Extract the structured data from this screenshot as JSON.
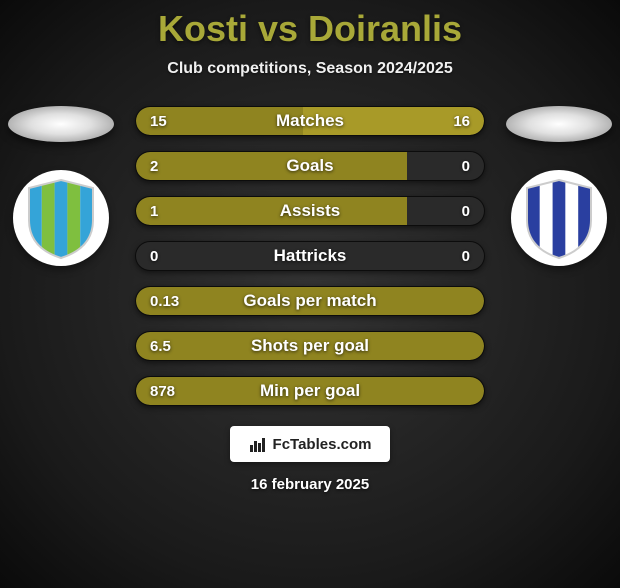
{
  "title": "Kosti vs Doiranlis",
  "subtitle": "Club competitions, Season 2024/2025",
  "player_left": {
    "name": "Kosti",
    "club_badge_bg": "#ffffff",
    "club_badge_stripes": [
      "#34a4d8",
      "#7fbf3f",
      "#34a4d8",
      "#7fbf3f",
      "#34a4d8"
    ]
  },
  "player_right": {
    "name": "Doiranlis",
    "club_badge_bg": "#ffffff",
    "club_badge_stripes": [
      "#2a3fa0",
      "#ffffff",
      "#2a3fa0",
      "#ffffff",
      "#2a3fa0"
    ]
  },
  "colors": {
    "bar_left": "#8f8420",
    "bar_right": "#a89a28",
    "bar_border": "#000000",
    "title": "#a8a838"
  },
  "stats": [
    {
      "label": "Matches",
      "left_val": "15",
      "right_val": "16",
      "left_pct": 48,
      "right_pct": 52
    },
    {
      "label": "Goals",
      "left_val": "2",
      "right_val": "0",
      "left_pct": 78,
      "right_pct": 0
    },
    {
      "label": "Assists",
      "left_val": "1",
      "right_val": "0",
      "left_pct": 78,
      "right_pct": 0
    },
    {
      "label": "Hattricks",
      "left_val": "0",
      "right_val": "0",
      "left_pct": 0,
      "right_pct": 0
    },
    {
      "label": "Goals per match",
      "left_val": "0.13",
      "right_val": "",
      "left_pct": 100,
      "right_pct": 0
    },
    {
      "label": "Shots per goal",
      "left_val": "6.5",
      "right_val": "",
      "left_pct": 100,
      "right_pct": 0
    },
    {
      "label": "Min per goal",
      "left_val": "878",
      "right_val": "",
      "left_pct": 100,
      "right_pct": 0
    }
  ],
  "attribution": "FcTables.com",
  "date": "16 february 2025"
}
